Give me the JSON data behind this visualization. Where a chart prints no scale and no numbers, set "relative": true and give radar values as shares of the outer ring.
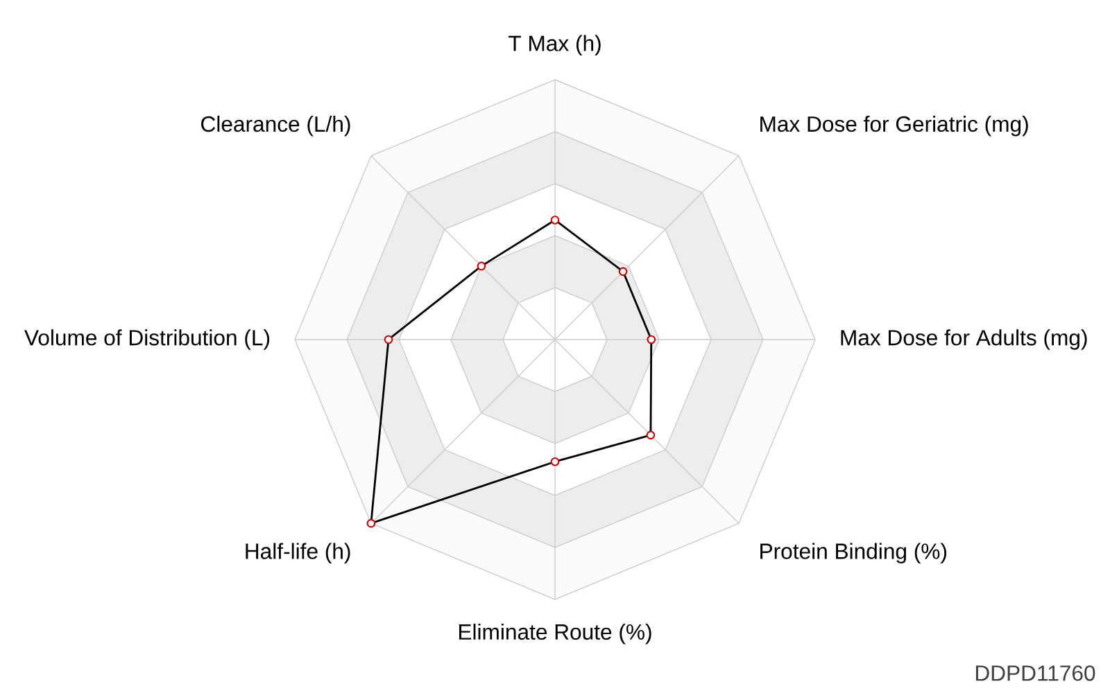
{
  "chart_data": {
    "type": "radar",
    "relative": true,
    "grid": true,
    "marker": "circle",
    "categories": [
      "T Max (h)",
      "Max Dose for Geriatric (mg)",
      "Max Dose for Adults (mg)",
      "Protein Binding (%)",
      "Eliminate Route (%)",
      "Half-life (h)",
      "Volume of Distribution (L)",
      "Clearance (L/h)"
    ],
    "series": [
      {
        "color": "#000000",
        "values": [
          0.46,
          0.37,
          0.37,
          0.52,
          0.47,
          1.0,
          0.64,
          0.4
        ]
      }
    ],
    "annotations": [
      "DDPD11760"
    ]
  }
}
